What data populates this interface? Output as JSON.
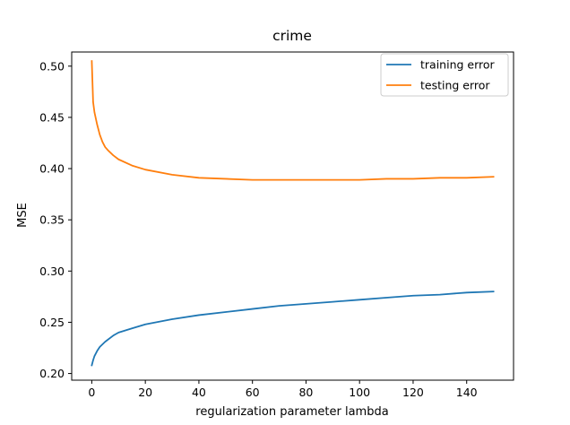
{
  "chart_data": {
    "type": "line",
    "title": "crime",
    "xlabel": "regularization parameter lambda",
    "ylabel": "MSE",
    "xlim": [
      -7.5,
      157.5
    ],
    "ylim": [
      0.1935,
      0.5138
    ],
    "xticks": [
      0,
      20,
      40,
      60,
      80,
      100,
      120,
      140
    ],
    "yticks": [
      0.2,
      0.25,
      0.3,
      0.35,
      0.4,
      0.45,
      0.5
    ],
    "xtick_labels": [
      "0",
      "20",
      "40",
      "60",
      "80",
      "100",
      "120",
      "140"
    ],
    "ytick_labels": [
      "0.20",
      "0.25",
      "0.30",
      "0.35",
      "0.40",
      "0.45",
      "0.50"
    ],
    "grid": false,
    "legend_position": "top-right",
    "series": [
      {
        "name": "training error",
        "color": "#1f77b4",
        "x": [
          0,
          0.5,
          1,
          2,
          3,
          5,
          8,
          10,
          15,
          20,
          30,
          40,
          50,
          60,
          70,
          80,
          90,
          100,
          110,
          120,
          130,
          140,
          150
        ],
        "y": [
          0.208,
          0.213,
          0.217,
          0.222,
          0.226,
          0.231,
          0.237,
          0.24,
          0.244,
          0.248,
          0.253,
          0.257,
          0.26,
          0.263,
          0.266,
          0.268,
          0.27,
          0.272,
          0.274,
          0.276,
          0.277,
          0.279,
          0.28
        ]
      },
      {
        "name": "testing error",
        "color": "#ff7f0e",
        "x": [
          0,
          0.5,
          1,
          2,
          3,
          4,
          5,
          6,
          8,
          10,
          15,
          20,
          30,
          40,
          50,
          60,
          70,
          80,
          90,
          100,
          110,
          120,
          130,
          140,
          150
        ],
        "y": [
          0.505,
          0.465,
          0.455,
          0.443,
          0.433,
          0.426,
          0.421,
          0.418,
          0.413,
          0.409,
          0.403,
          0.399,
          0.394,
          0.391,
          0.39,
          0.389,
          0.389,
          0.389,
          0.389,
          0.389,
          0.39,
          0.39,
          0.391,
          0.391,
          0.392
        ]
      }
    ]
  }
}
